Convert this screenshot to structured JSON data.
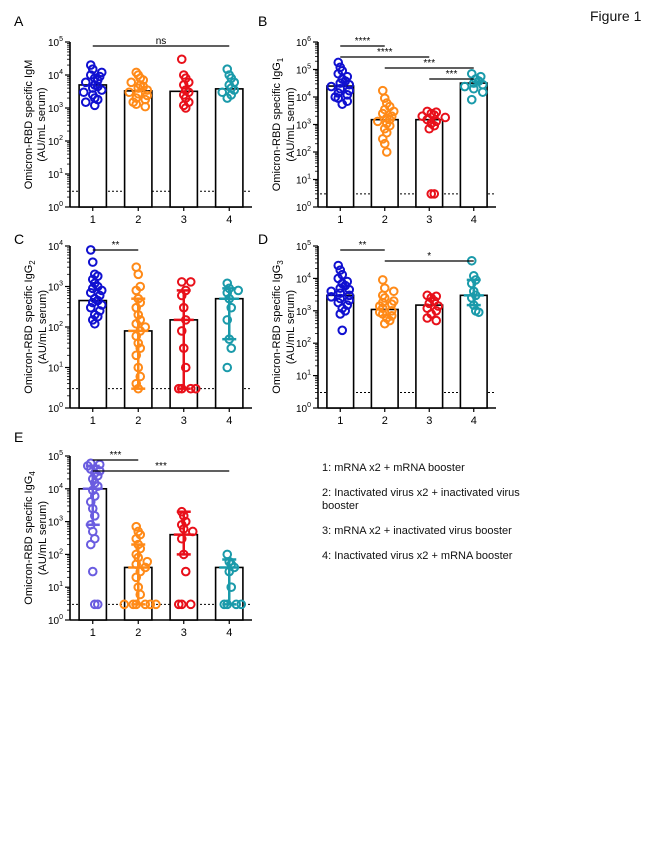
{
  "figure_title": "Figure 1",
  "legend": [
    "1: mRNA x2 + mRNA booster",
    "2: Inactivated virus x2 + inactivated virus booster",
    "3: mRNA x2 + inactivated virus booster",
    "4: Inactivated virus x2 + mRNA booster"
  ],
  "group_colors": [
    "#1010d0",
    "#ff8a18",
    "#e8101a",
    "#1a9aaa"
  ],
  "panel_e_group1_color": "#6a5ce0",
  "chart_data": [
    {
      "panel": "A",
      "type": "scatter",
      "ylabel": [
        "Omicron-RBD specific IgM",
        "(AU/mL serum)"
      ],
      "ylabel_sub": "",
      "categories": [
        "1",
        "2",
        "3",
        "4"
      ],
      "ylim": [
        1,
        100000
      ],
      "yscale": "log",
      "yticks": [
        {
          "base": "10",
          "exp": "0"
        },
        {
          "base": "10",
          "exp": "1"
        },
        {
          "base": "10",
          "exp": "2"
        },
        {
          "base": "10",
          "exp": "3"
        },
        {
          "base": "10",
          "exp": "4"
        },
        {
          "base": "10",
          "exp": "5"
        }
      ],
      "lod": 3,
      "bars": [
        5000,
        3300,
        3200,
        3800
      ],
      "errors": [
        null,
        null,
        null,
        null
      ],
      "points": [
        [
          20000,
          15000,
          12000,
          10000,
          9000,
          8000,
          7000,
          6000,
          5000,
          4500,
          4000,
          3500,
          3000,
          2500,
          2000,
          1800,
          1500,
          1200
        ],
        [
          12000,
          10000,
          8000,
          7000,
          6000,
          5000,
          4500,
          4000,
          3500,
          3000,
          2700,
          2400,
          2000,
          1800,
          1500,
          1300,
          1100
        ],
        [
          30000,
          10000,
          8000,
          6000,
          5000,
          3500,
          3000,
          2500,
          2000,
          1500,
          1200,
          1000
        ],
        [
          15000,
          10000,
          8000,
          6000,
          5000,
          4000,
          3500,
          3000,
          2500,
          2000
        ]
      ],
      "sig": [
        {
          "from": "1",
          "to": "4",
          "label": "ns"
        }
      ]
    },
    {
      "panel": "B",
      "type": "scatter",
      "ylabel": [
        "Omicron-RBD specific IgG",
        "(AU/mL serum)"
      ],
      "ylabel_sub": "1",
      "categories": [
        "1",
        "2",
        "3",
        "4"
      ],
      "ylim": [
        1,
        1000000
      ],
      "yscale": "log",
      "yticks": [
        {
          "base": "10",
          "exp": "0"
        },
        {
          "base": "10",
          "exp": "1"
        },
        {
          "base": "10",
          "exp": "2"
        },
        {
          "base": "10",
          "exp": "3"
        },
        {
          "base": "10",
          "exp": "4"
        },
        {
          "base": "10",
          "exp": "5"
        },
        {
          "base": "10",
          "exp": "6"
        }
      ],
      "lod": 3,
      "bars": [
        25000,
        1500,
        1500,
        32000
      ],
      "errors": [
        null,
        null,
        null,
        null
      ],
      "points": [
        [
          180000,
          120000,
          90000,
          70000,
          55000,
          45000,
          38000,
          32000,
          28000,
          24000,
          20000,
          17000,
          14000,
          12000,
          10000,
          9000,
          7000,
          5500
        ],
        [
          17000,
          9000,
          6000,
          4500,
          3500,
          3000,
          2500,
          2000,
          1700,
          1500,
          1300,
          1100,
          900,
          700,
          500,
          300,
          200,
          100
        ],
        [
          3000,
          2800,
          2500,
          2200,
          2000,
          1800,
          1500,
          1300,
          1100,
          900,
          700,
          3,
          3
        ],
        [
          70000,
          55000,
          45000,
          38000,
          32000,
          28000,
          24000,
          20000,
          15000,
          8000
        ]
      ],
      "sig": [
        {
          "from": "1",
          "to": "2",
          "label": "****"
        },
        {
          "from": "1",
          "to": "3",
          "label": "****"
        },
        {
          "from": "2",
          "to": "4",
          "label": "***"
        },
        {
          "from": "3",
          "to": "4",
          "label": "***"
        }
      ]
    },
    {
      "panel": "C",
      "type": "scatter",
      "ylabel": [
        "Omicron-RBD specific IgG",
        "(AU/mL serum)"
      ],
      "ylabel_sub": "2",
      "categories": [
        "1",
        "2",
        "3",
        "4"
      ],
      "ylim": [
        1,
        10000
      ],
      "yscale": "log",
      "yticks": [
        {
          "base": "10",
          "exp": "0"
        },
        {
          "base": "10",
          "exp": "1"
        },
        {
          "base": "10",
          "exp": "2"
        },
        {
          "base": "10",
          "exp": "3"
        },
        {
          "base": "10",
          "exp": "4"
        }
      ],
      "lod": 3,
      "bars": [
        450,
        80,
        150,
        500
      ],
      "errors": [
        null,
        [
          3,
          500
        ],
        [
          3,
          800
        ],
        [
          50,
          900
        ]
      ],
      "points": [
        [
          8000,
          4000,
          2000,
          1800,
          1500,
          1200,
          1000,
          900,
          800,
          700,
          600,
          500,
          450,
          400,
          350,
          300,
          250,
          200,
          180,
          150,
          120
        ],
        [
          3000,
          2000,
          1000,
          800,
          500,
          400,
          300,
          200,
          150,
          120,
          100,
          80,
          60,
          40,
          30,
          20,
          10,
          6,
          4,
          3
        ],
        [
          1300,
          1300,
          800,
          600,
          300,
          150,
          80,
          30,
          10,
          3,
          3,
          3,
          3
        ],
        [
          1200,
          900,
          800,
          700,
          500,
          300,
          150,
          50,
          30,
          10
        ]
      ],
      "sig": [
        {
          "from": "1",
          "to": "2",
          "label": "**"
        }
      ]
    },
    {
      "panel": "D",
      "type": "scatter",
      "ylabel": [
        "Omicron-RBD specific IgG",
        "(AU/mL serum)"
      ],
      "ylabel_sub": "3",
      "categories": [
        "1",
        "2",
        "3",
        "4"
      ],
      "ylim": [
        1,
        100000
      ],
      "yscale": "log",
      "yticks": [
        {
          "base": "10",
          "exp": "0"
        },
        {
          "base": "10",
          "exp": "1"
        },
        {
          "base": "10",
          "exp": "2"
        },
        {
          "base": "10",
          "exp": "3"
        },
        {
          "base": "10",
          "exp": "4"
        },
        {
          "base": "10",
          "exp": "5"
        }
      ],
      "lod": 3,
      "bars": [
        3000,
        1100,
        1500,
        3000
      ],
      "errors": [
        null,
        null,
        null,
        [
          1500,
          9000
        ]
      ],
      "points": [
        [
          25000,
          18000,
          13000,
          10000,
          8000,
          7000,
          6000,
          5000,
          4500,
          4000,
          3500,
          3000,
          2700,
          2400,
          2100,
          1800,
          1500,
          1200,
          1000,
          800,
          250
        ],
        [
          9000,
          5000,
          4000,
          3000,
          2500,
          2000,
          1800,
          1600,
          1400,
          1200,
          1000,
          900,
          800,
          700,
          600,
          500,
          400
        ],
        [
          3000,
          2800,
          2500,
          2000,
          1700,
          1400,
          1200,
          1000,
          800,
          600,
          500
        ],
        [
          35000,
          12000,
          9000,
          7000,
          4000,
          3000,
          2500,
          1500,
          1000,
          900
        ]
      ],
      "sig": [
        {
          "from": "1",
          "to": "2",
          "label": "**"
        },
        {
          "from": "2",
          "to": "4",
          "label": "*"
        }
      ]
    },
    {
      "panel": "E",
      "type": "scatter",
      "ylabel": [
        "Omicron-RBD specific IgG",
        "(AU/mL serum)"
      ],
      "ylabel_sub": "4",
      "categories": [
        "1",
        "2",
        "3",
        "4"
      ],
      "ylim": [
        1,
        100000
      ],
      "yscale": "log",
      "yticks": [
        {
          "base": "10",
          "exp": "0"
        },
        {
          "base": "10",
          "exp": "1"
        },
        {
          "base": "10",
          "exp": "2"
        },
        {
          "base": "10",
          "exp": "3"
        },
        {
          "base": "10",
          "exp": "4"
        },
        {
          "base": "10",
          "exp": "5"
        }
      ],
      "lod": 3,
      "bars": [
        10000,
        40,
        400,
        40
      ],
      "errors": [
        [
          800,
          50000
        ],
        [
          3,
          200
        ],
        [
          100,
          2000
        ],
        [
          3,
          70
        ]
      ],
      "points": [
        [
          60000,
          55000,
          50000,
          40000,
          35000,
          30000,
          25000,
          20000,
          15000,
          12000,
          9000,
          6000,
          4000,
          2500,
          1500,
          800,
          500,
          300,
          200,
          30,
          3,
          3
        ],
        [
          700,
          500,
          400,
          300,
          200,
          150,
          100,
          80,
          60,
          50,
          40,
          30,
          20,
          10,
          6,
          3,
          3,
          3,
          3,
          3,
          3
        ],
        [
          2000,
          1500,
          1000,
          800,
          600,
          500,
          300,
          100,
          30,
          3,
          3,
          3
        ],
        [
          100,
          60,
          50,
          40,
          30,
          10,
          3,
          3,
          3,
          3
        ]
      ],
      "sig": [
        {
          "from": "1",
          "to": "2",
          "label": "***"
        },
        {
          "from": "1",
          "to": "4",
          "label": "***"
        }
      ]
    }
  ]
}
